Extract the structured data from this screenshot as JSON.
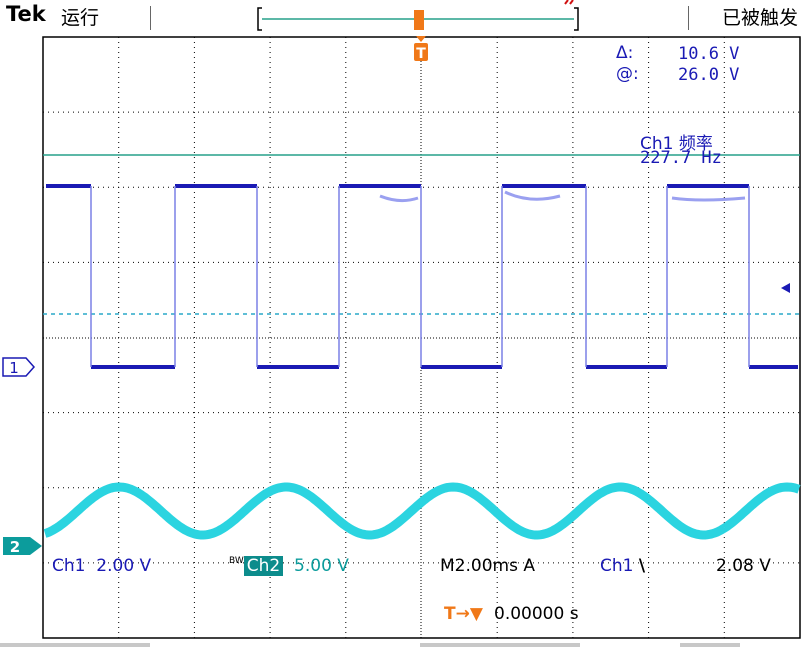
{
  "topbar": {
    "brand": "Tek",
    "run_state": "运行",
    "trigger_state": "已被触发",
    "trigger_marker": "T"
  },
  "cursor_readout": {
    "delta_label": "Δ:",
    "delta_value": "10.6 V",
    "at_label": "@:",
    "at_value": "26.0 V"
  },
  "measurement": {
    "label": "Ch1 频率",
    "value": "227.7 Hz"
  },
  "channel_markers": {
    "ch1": "1",
    "ch2": "2"
  },
  "status_bar": {
    "ch1_label": "Ch1",
    "ch1_scale": "2.00 V",
    "bw_label": "BW",
    "ch2_label": "Ch2",
    "ch2_scale": "5.00 V",
    "timebase": "M2.00ms",
    "trigger_mode": "A",
    "trigger_source": "Ch1",
    "trigger_slope": "\\",
    "trigger_level": "2.08 V",
    "delay_label": "T→▼",
    "delay_value": "0.00000 s"
  },
  "colors": {
    "ch1": "#1a1ab4",
    "ch2": "#2bd4e0",
    "cursor": "#27a08a",
    "trigger": "#f07818",
    "readout": "#1a1ab4",
    "grid": "#000000"
  }
}
